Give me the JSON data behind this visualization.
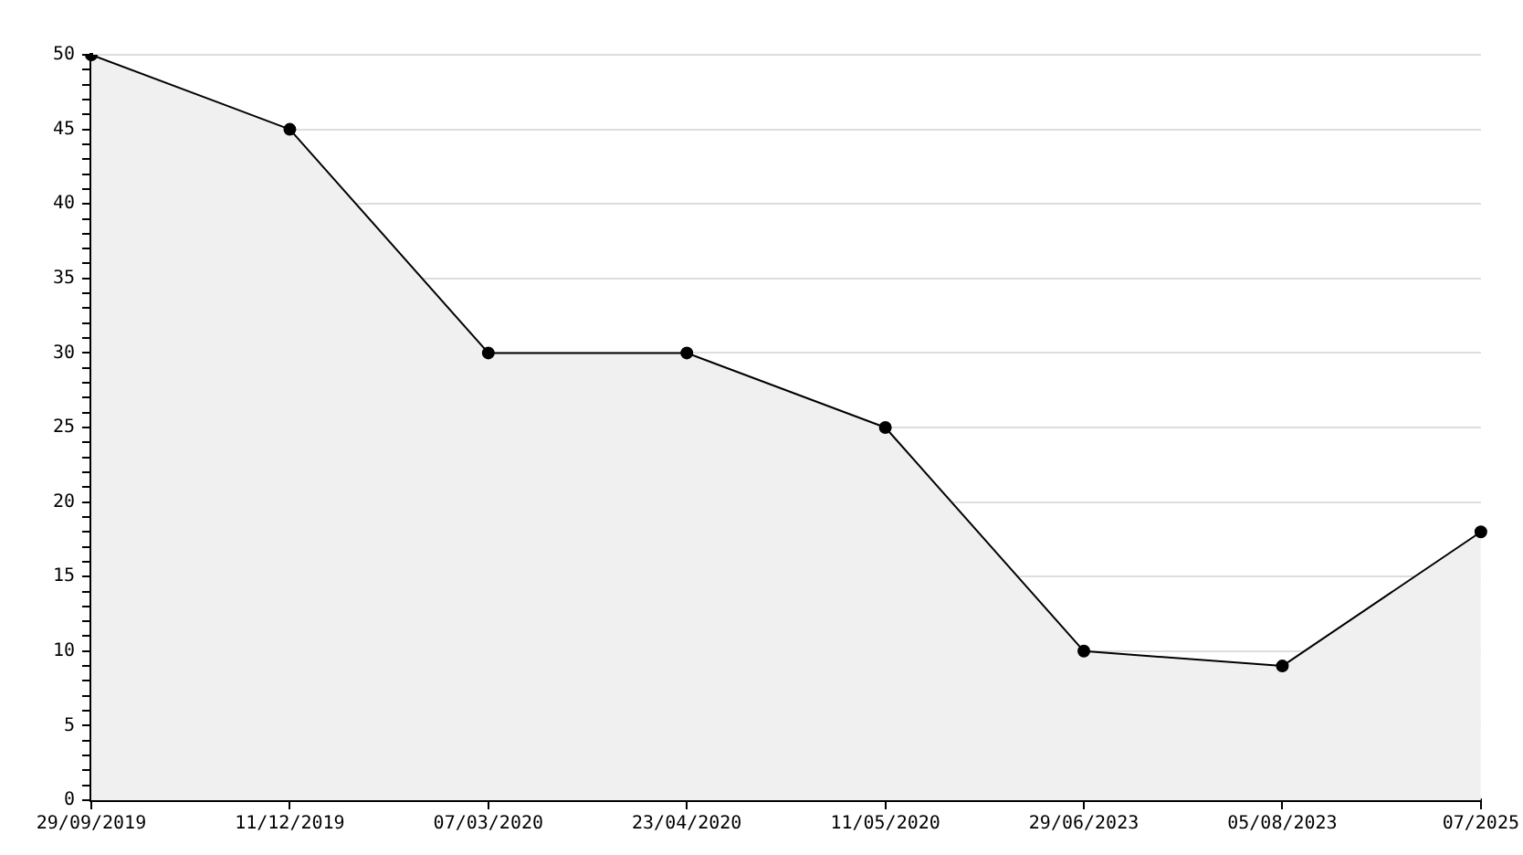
{
  "chart_data": {
    "type": "area",
    "categories": [
      "29/09/2019",
      "11/12/2019",
      "07/03/2020",
      "23/04/2020",
      "11/05/2020",
      "29/06/2023",
      "05/08/2023",
      "07/2025"
    ],
    "series": [
      {
        "color": "#f0f0f0",
        "values": [
          50,
          45,
          30,
          30,
          25,
          10,
          9,
          18
        ]
      }
    ],
    "ylim": [
      0,
      50
    ],
    "yticks": [
      0,
      {
        "value": 1,
        "label": null
      },
      {
        "value": 2,
        "label": null
      },
      {
        "value": 3,
        "label": null
      },
      {
        "value": 4,
        "label": null
      },
      5,
      {
        "value": 6,
        "label": null
      },
      {
        "value": 7,
        "label": null
      },
      {
        "value": 8,
        "label": null
      },
      {
        "value": 9,
        "label": null
      },
      10,
      {
        "value": 11,
        "label": null
      },
      {
        "value": 12,
        "label": null
      },
      {
        "value": 13,
        "label": null
      },
      {
        "value": 14,
        "label": null
      },
      15,
      {
        "value": 16,
        "label": null
      },
      {
        "value": 17,
        "label": null
      },
      {
        "value": 18,
        "label": null
      },
      {
        "value": 19,
        "label": null
      },
      20,
      {
        "value": 21,
        "label": null
      },
      {
        "value": 22,
        "label": null
      },
      {
        "value": 23,
        "label": null
      },
      {
        "value": 24,
        "label": null
      },
      25,
      {
        "value": 26,
        "label": null
      },
      {
        "value": 27,
        "label": null
      },
      {
        "value": 28,
        "label": null
      },
      {
        "value": 29,
        "label": null
      },
      30,
      {
        "value": 31,
        "label": null
      },
      {
        "value": 32,
        "label": null
      },
      {
        "value": 33,
        "label": null
      },
      {
        "value": 34,
        "label": null
      },
      35,
      {
        "value": 36,
        "label": null
      },
      {
        "value": 37,
        "label": null
      },
      {
        "value": 38,
        "label": null
      },
      {
        "value": 39,
        "label": null
      },
      40,
      {
        "value": 41,
        "label": null
      },
      {
        "value": 42,
        "label": null
      },
      {
        "value": 43,
        "label": null
      },
      {
        "value": 44,
        "label": null
      },
      45,
      {
        "value": 46,
        "label": null
      },
      {
        "value": 47,
        "label": null
      },
      {
        "value": 48,
        "label": null
      },
      {
        "value": 49,
        "label": null
      },
      50
    ],
    "grid": "y",
    "marker": "circle",
    "line_style": "solid"
  }
}
